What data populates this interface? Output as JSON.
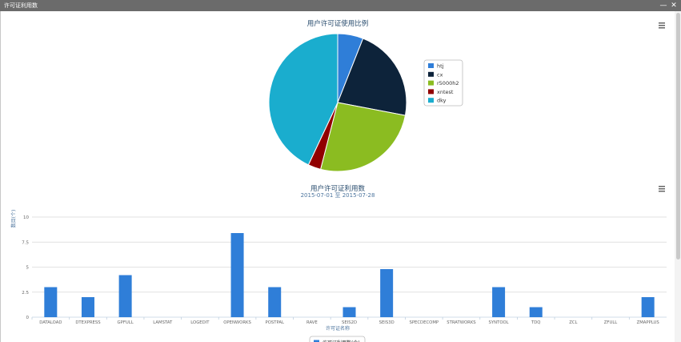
{
  "window": {
    "title": "许可证利用数",
    "minimize_icon": "minimize-icon",
    "close_icon": "close-icon"
  },
  "pie_chart": {
    "menu_icon": "hamburger-menu-icon"
  },
  "bar_chart": {
    "menu_icon": "hamburger-menu-icon"
  },
  "chart_data": [
    {
      "type": "pie",
      "title": "用户许可证使用比例",
      "legend_position": "right",
      "categories": [
        "htj",
        "cx",
        "r5000h2",
        "xntest",
        "dky"
      ],
      "values": [
        6,
        22,
        26,
        3,
        43
      ],
      "colors": [
        "#2f7ed8",
        "#0d233a",
        "#8bbc21",
        "#910000",
        "#1aadce"
      ]
    },
    {
      "type": "bar",
      "title": "用户许可证利用数",
      "subtitle": "2015-07-01 至 2015-07-28",
      "xlabel": "许可证名称",
      "ylabel": "数目(个)",
      "ylim": [
        0,
        10
      ],
      "yticks": [
        "0",
        "2.5",
        "5",
        "7.5",
        "10"
      ],
      "grid": true,
      "legend_position": "bottom",
      "categories": [
        "DATALOAD",
        "DTEXPRESS",
        "GPFULL",
        "LAMSTAT",
        "LOGEDIT",
        "OPENWORKS",
        "POSTPAL",
        "RAVE",
        "SEIS2D",
        "SEIS3D",
        "SPECDECOMP",
        "STRATWORKS",
        "SYNTOOL",
        "TDQ",
        "ZCL",
        "ZFULL",
        "ZMAPPLUS"
      ],
      "series": [
        {
          "name": "许可证利用数(个)",
          "color": "#2f7ed8",
          "values": [
            3,
            2,
            4.2,
            0,
            0,
            8.4,
            3,
            0,
            1,
            4.8,
            0,
            0,
            3,
            1,
            0,
            0,
            2
          ]
        }
      ]
    }
  ]
}
